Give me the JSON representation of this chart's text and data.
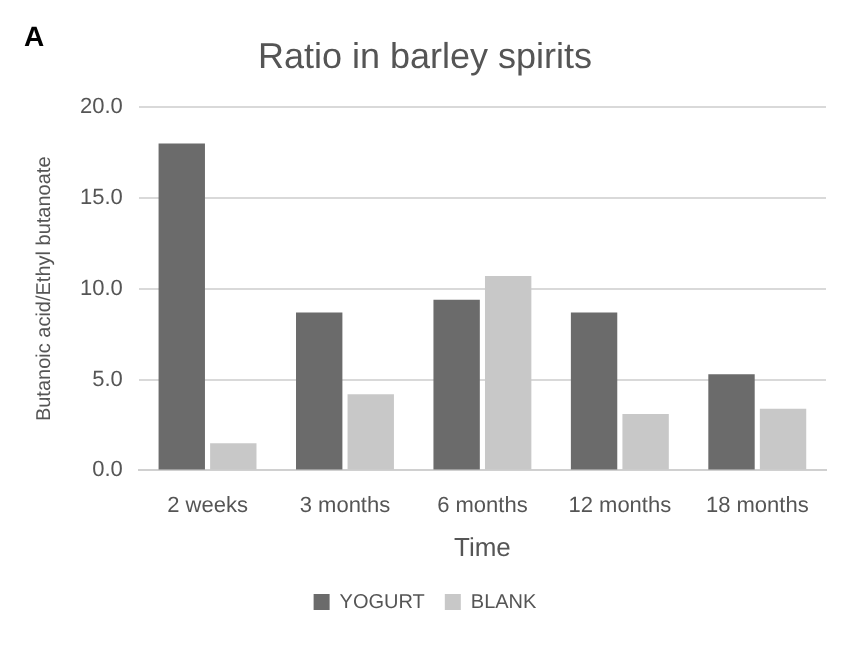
{
  "chart_data": {
    "type": "bar",
    "title": "Ratio in barley spirits",
    "xlabel": "Time",
    "ylabel": "Butanoic acid/Ethyl butanoate",
    "annotations": [
      "A"
    ],
    "categories": [
      "2 weeks",
      "3 months",
      "6 months",
      "12 months",
      "18 months"
    ],
    "series": [
      {
        "name": "YOGURT",
        "color": "#6b6b6b",
        "values": [
          18.0,
          8.7,
          9.4,
          8.7,
          5.3
        ]
      },
      {
        "name": "BLANK",
        "color": "#c8c8c8",
        "values": [
          1.5,
          4.2,
          10.7,
          3.1,
          3.4
        ]
      }
    ],
    "ylim": [
      0,
      20
    ],
    "yticks": [
      {
        "value": 0,
        "label": "0.0"
      },
      {
        "value": 5,
        "label": "5.0"
      },
      {
        "value": 10,
        "label": "10.0"
      },
      {
        "value": 15,
        "label": "15.0"
      },
      {
        "value": 20,
        "label": "20.0"
      }
    ],
    "grid": "y",
    "legend": "bottom"
  }
}
